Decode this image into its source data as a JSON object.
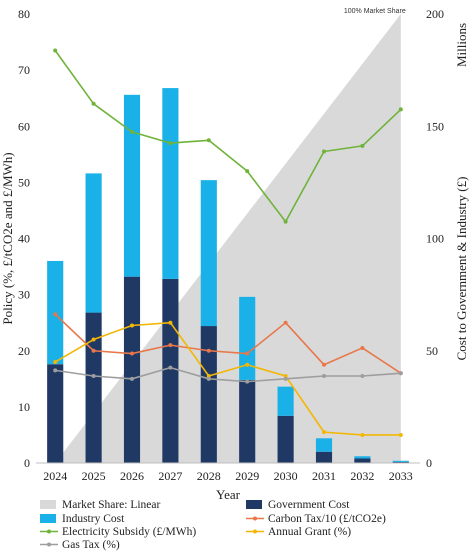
{
  "chart_data": {
    "type": "bar",
    "xlabel": "Year",
    "ylabel_left": "Policy (%, £/tCO2e and £/MWh)",
    "ylabel_right": "Cost to Government & Industry (£)",
    "right_unit": "Millions",
    "annotation": "100% Market Share",
    "categories": [
      "2024",
      "2025",
      "2026",
      "2027",
      "2028",
      "2029",
      "2030",
      "2031",
      "2032",
      "2033"
    ],
    "ylim_left": [
      0,
      80
    ],
    "yticks_left": [
      "0",
      "10",
      "20",
      "30",
      "40",
      "50",
      "60",
      "70",
      "80"
    ],
    "ylim_right": [
      0,
      200
    ],
    "yticks_right": [
      "0",
      "50",
      "100",
      "150",
      "200"
    ],
    "grid": false,
    "legend_position": "bottom",
    "area": {
      "name": "Market Share: Linear",
      "color": "#d9d9d9",
      "axis": "right",
      "x": [
        2024,
        2033
      ],
      "values": [
        0,
        200
      ]
    },
    "stacked_bars": [
      {
        "name": "Government Cost",
        "color": "#1f3864",
        "axis": "right",
        "values": [
          44,
          67,
          83,
          82,
          61,
          37,
          21,
          5,
          2,
          0.5
        ]
      },
      {
        "name": "Industry Cost",
        "color": "#1ab0e8",
        "axis": "right",
        "values": [
          46,
          62,
          81,
          85,
          65,
          37,
          13,
          6,
          1,
          0.5
        ]
      }
    ],
    "series": [
      {
        "name": "Carbon Tax/10 (£/tCO2e)",
        "color": "#e8774b",
        "axis": "left",
        "values": [
          26.5,
          20,
          19.5,
          21,
          20,
          19.5,
          25,
          17.5,
          20.5,
          16
        ]
      },
      {
        "name": "Electricity Subsidy (£/MWh)",
        "color": "#6fb33a",
        "axis": "left",
        "values": [
          73.5,
          64,
          59,
          57,
          57.5,
          52,
          43,
          55.5,
          56.5,
          63
        ]
      },
      {
        "name": "Annual Grant (%)",
        "color": "#f2b705",
        "axis": "left",
        "values": [
          18,
          22,
          24.5,
          25,
          15.5,
          17.5,
          15.5,
          5.5,
          5,
          5
        ]
      },
      {
        "name": "Gas Tax (%)",
        "color": "#9e9e9e",
        "axis": "left",
        "values": [
          16.5,
          15.5,
          15,
          17,
          15,
          14.5,
          15,
          15.5,
          15.5,
          16
        ]
      }
    ],
    "legend": [
      {
        "label": "Market Share: Linear",
        "kind": "swatch",
        "color": "#d9d9d9"
      },
      {
        "label": "Government Cost",
        "kind": "swatch",
        "color": "#1f3864"
      },
      {
        "label": "Industry Cost",
        "kind": "swatch",
        "color": "#1ab0e8"
      },
      {
        "label": "Carbon Tax/10 (£/tCO2e)",
        "kind": "line",
        "color": "#e8774b"
      },
      {
        "label": "Electricity Subsidy (£/MWh)",
        "kind": "line",
        "color": "#6fb33a"
      },
      {
        "label": "Annual Grant (%)",
        "kind": "line",
        "color": "#f2b705"
      },
      {
        "label": "Gas Tax (%)",
        "kind": "line",
        "color": "#9e9e9e"
      }
    ]
  }
}
